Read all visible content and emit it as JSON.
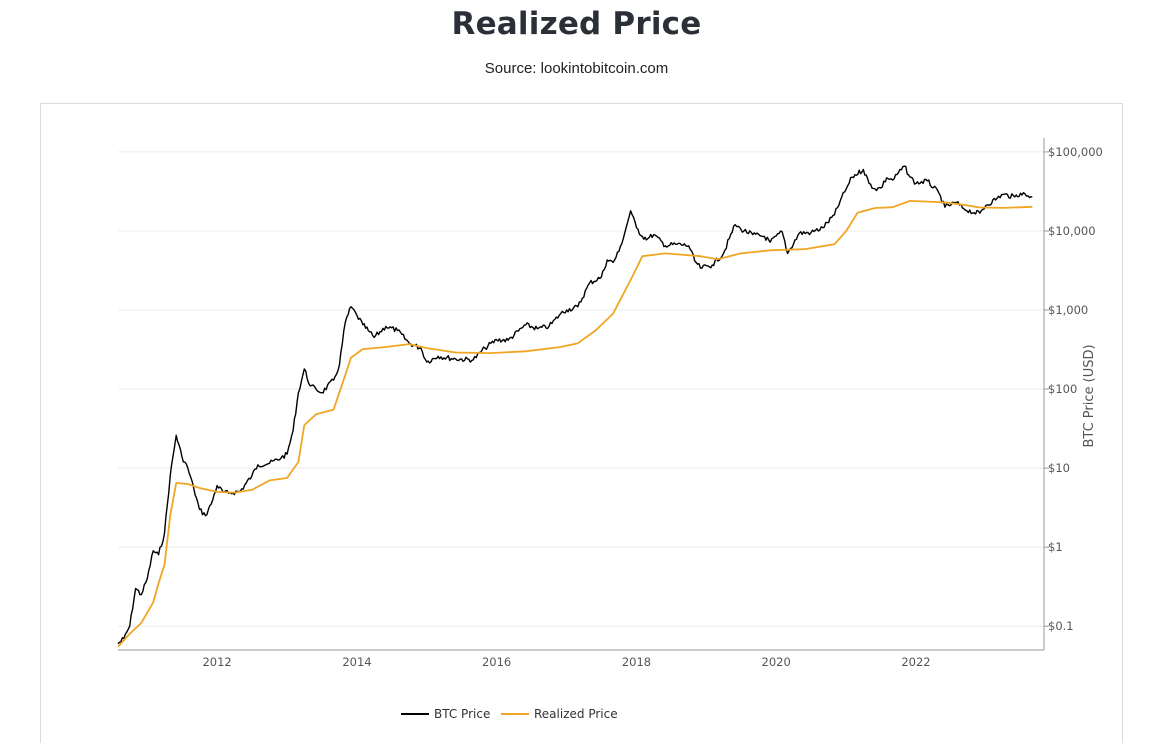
{
  "page": {
    "title": "Realized Price",
    "subtitle": "Source: lookintobitcoin.com"
  },
  "chart_data": {
    "type": "line",
    "title": "Realized Price",
    "subtitle": "Source: lookintobitcoin.com",
    "xlabel": "",
    "ylabel": "BTC Price (USD)",
    "y_scale": "log",
    "ylim": [
      0.05,
      150000
    ],
    "xlim": [
      "2010-08-01",
      "2023-11-01"
    ],
    "x_tick_labels": [
      "2012",
      "2014",
      "2016",
      "2018",
      "2020",
      "2022"
    ],
    "y_tick_labels": [
      "$0.1",
      "$1",
      "$10",
      "$100",
      "$1,000",
      "$10,000",
      "$100,000"
    ],
    "y_ticks": [
      0.1,
      1,
      10,
      100,
      1000,
      10000,
      100000
    ],
    "grid": "horizontal",
    "legend_position": "bottom-center",
    "series": [
      {
        "name": "BTC Price",
        "color": "#000000",
        "points": [
          [
            "2010-08-01",
            0.06
          ],
          [
            "2010-09-01",
            0.07
          ],
          [
            "2010-10-01",
            0.1
          ],
          [
            "2010-11-01",
            0.3
          ],
          [
            "2010-12-01",
            0.25
          ],
          [
            "2011-01-01",
            0.4
          ],
          [
            "2011-02-01",
            0.9
          ],
          [
            "2011-03-01",
            0.8
          ],
          [
            "2011-04-01",
            1.5
          ],
          [
            "2011-05-01",
            8
          ],
          [
            "2011-06-01",
            26
          ],
          [
            "2011-07-01",
            14
          ],
          [
            "2011-08-01",
            10
          ],
          [
            "2011-09-01",
            5.5
          ],
          [
            "2011-10-01",
            3
          ],
          [
            "2011-11-01",
            2.5
          ],
          [
            "2011-12-01",
            3.5
          ],
          [
            "2012-01-01",
            6
          ],
          [
            "2012-02-01",
            5
          ],
          [
            "2012-03-01",
            4.8
          ],
          [
            "2012-05-01",
            5.1
          ],
          [
            "2012-07-01",
            8
          ],
          [
            "2012-08-01",
            11
          ],
          [
            "2012-10-01",
            11.5
          ],
          [
            "2012-12-01",
            13.5
          ],
          [
            "2013-01-01",
            15
          ],
          [
            "2013-02-01",
            30
          ],
          [
            "2013-03-01",
            90
          ],
          [
            "2013-04-01",
            180
          ],
          [
            "2013-05-01",
            110
          ],
          [
            "2013-06-01",
            100
          ],
          [
            "2013-07-01",
            90
          ],
          [
            "2013-09-01",
            130
          ],
          [
            "2013-10-01",
            200
          ],
          [
            "2013-11-01",
            700
          ],
          [
            "2013-12-01",
            1100
          ],
          [
            "2014-01-01",
            850
          ],
          [
            "2014-02-01",
            650
          ],
          [
            "2014-03-01",
            550
          ],
          [
            "2014-04-01",
            450
          ],
          [
            "2014-06-01",
            620
          ],
          [
            "2014-08-01",
            550
          ],
          [
            "2014-10-01",
            380
          ],
          [
            "2014-12-01",
            330
          ],
          [
            "2015-01-01",
            220
          ],
          [
            "2015-03-01",
            260
          ],
          [
            "2015-06-01",
            240
          ],
          [
            "2015-09-01",
            235
          ],
          [
            "2015-11-01",
            330
          ],
          [
            "2016-01-01",
            420
          ],
          [
            "2016-03-01",
            415
          ],
          [
            "2016-06-01",
            650
          ],
          [
            "2016-08-01",
            580
          ],
          [
            "2016-10-01",
            620
          ],
          [
            "2016-12-01",
            900
          ],
          [
            "2017-01-01",
            1000
          ],
          [
            "2017-03-01",
            1100
          ],
          [
            "2017-05-01",
            2200
          ],
          [
            "2017-07-01",
            2600
          ],
          [
            "2017-08-01",
            4300
          ],
          [
            "2017-09-01",
            4000
          ],
          [
            "2017-10-01",
            5500
          ],
          [
            "2017-11-01",
            9500
          ],
          [
            "2017-12-01",
            18000
          ],
          [
            "2018-01-01",
            11000
          ],
          [
            "2018-02-01",
            8500
          ],
          [
            "2018-03-01",
            8000
          ],
          [
            "2018-04-01",
            9000
          ],
          [
            "2018-06-01",
            6500
          ],
          [
            "2018-08-01",
            6800
          ],
          [
            "2018-10-01",
            6500
          ],
          [
            "2018-11-01",
            4200
          ],
          [
            "2018-12-01",
            3400
          ],
          [
            "2019-02-01",
            3700
          ],
          [
            "2019-04-01",
            5200
          ],
          [
            "2019-05-01",
            8000
          ],
          [
            "2019-06-01",
            12000
          ],
          [
            "2019-07-01",
            10500
          ],
          [
            "2019-09-01",
            9000
          ],
          [
            "2019-11-01",
            8500
          ],
          [
            "2019-12-01",
            7200
          ],
          [
            "2020-02-01",
            9800
          ],
          [
            "2020-03-01",
            5200
          ],
          [
            "2020-05-01",
            9400
          ],
          [
            "2020-07-01",
            9500
          ],
          [
            "2020-09-01",
            11000
          ],
          [
            "2020-11-01",
            16000
          ],
          [
            "2020-12-01",
            24000
          ],
          [
            "2021-01-01",
            34000
          ],
          [
            "2021-02-01",
            48000
          ],
          [
            "2021-04-01",
            60000
          ],
          [
            "2021-05-01",
            40000
          ],
          [
            "2021-06-01",
            34000
          ],
          [
            "2021-07-01",
            35000
          ],
          [
            "2021-08-01",
            47000
          ],
          [
            "2021-09-01",
            44000
          ],
          [
            "2021-11-01",
            66000
          ],
          [
            "2021-12-01",
            48000
          ],
          [
            "2022-01-01",
            40000
          ],
          [
            "2022-03-01",
            43000
          ],
          [
            "2022-05-01",
            30000
          ],
          [
            "2022-06-01",
            20000
          ],
          [
            "2022-08-01",
            23000
          ],
          [
            "2022-09-01",
            19500
          ],
          [
            "2022-11-01",
            17000
          ],
          [
            "2022-12-01",
            16800
          ],
          [
            "2023-01-01",
            21000
          ],
          [
            "2023-03-01",
            26000
          ],
          [
            "2023-04-01",
            29000
          ],
          [
            "2023-06-01",
            27000
          ],
          [
            "2023-07-01",
            30000
          ],
          [
            "2023-09-01",
            27000
          ]
        ]
      },
      {
        "name": "Realized Price",
        "color": "#f0a623",
        "points": [
          [
            "2010-08-01",
            0.055
          ],
          [
            "2010-10-01",
            0.08
          ],
          [
            "2010-12-01",
            0.11
          ],
          [
            "2011-02-01",
            0.2
          ],
          [
            "2011-03-01",
            0.35
          ],
          [
            "2011-04-01",
            0.6
          ],
          [
            "2011-05-01",
            2.5
          ],
          [
            "2011-06-01",
            6.5
          ],
          [
            "2011-08-01",
            6.3
          ],
          [
            "2011-10-01",
            5.6
          ],
          [
            "2012-01-01",
            5.0
          ],
          [
            "2012-04-01",
            4.9
          ],
          [
            "2012-07-01",
            5.3
          ],
          [
            "2012-10-01",
            7
          ],
          [
            "2013-01-01",
            7.5
          ],
          [
            "2013-03-01",
            12
          ],
          [
            "2013-04-01",
            35
          ],
          [
            "2013-06-01",
            48
          ],
          [
            "2013-09-01",
            55
          ],
          [
            "2013-11-01",
            150
          ],
          [
            "2013-12-01",
            250
          ],
          [
            "2014-02-01",
            320
          ],
          [
            "2014-06-01",
            340
          ],
          [
            "2014-10-01",
            370
          ],
          [
            "2015-01-01",
            330
          ],
          [
            "2015-06-01",
            290
          ],
          [
            "2015-12-01",
            285
          ],
          [
            "2016-06-01",
            300
          ],
          [
            "2016-12-01",
            340
          ],
          [
            "2017-03-01",
            380
          ],
          [
            "2017-06-01",
            550
          ],
          [
            "2017-09-01",
            900
          ],
          [
            "2017-12-01",
            2400
          ],
          [
            "2018-02-01",
            4800
          ],
          [
            "2018-06-01",
            5200
          ],
          [
            "2018-12-01",
            4800
          ],
          [
            "2019-03-01",
            4400
          ],
          [
            "2019-07-01",
            5200
          ],
          [
            "2019-12-01",
            5700
          ],
          [
            "2020-06-01",
            5900
          ],
          [
            "2020-11-01",
            6800
          ],
          [
            "2021-01-01",
            10000
          ],
          [
            "2021-03-01",
            17000
          ],
          [
            "2021-06-01",
            19500
          ],
          [
            "2021-09-01",
            20000
          ],
          [
            "2021-12-01",
            24000
          ],
          [
            "2022-03-01",
            23500
          ],
          [
            "2022-06-01",
            23000
          ],
          [
            "2022-09-01",
            21500
          ],
          [
            "2022-12-01",
            19800
          ],
          [
            "2023-04-01",
            19600
          ],
          [
            "2023-09-01",
            20200
          ]
        ]
      }
    ]
  }
}
